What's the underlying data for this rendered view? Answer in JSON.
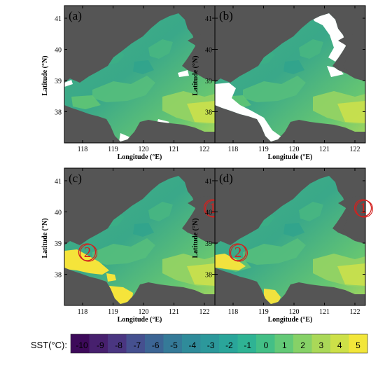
{
  "panels": [
    {
      "label": "(a)",
      "circles": []
    },
    {
      "label": "(b)",
      "circles": []
    },
    {
      "label": "(c)",
      "circles": [
        {
          "label": "1"
        },
        {
          "label": "2"
        }
      ]
    },
    {
      "label": "(d)",
      "circles": [
        {
          "label": "1"
        },
        {
          "label": "2"
        }
      ]
    }
  ],
  "axes": {
    "xlabel": "Longitude (°E)",
    "ylabel": "Latitude (°N)",
    "xticks": [
      "118",
      "119",
      "120",
      "121",
      "122"
    ],
    "yticks": [
      "41",
      "40",
      "39",
      "38"
    ]
  },
  "colorbar": {
    "label": "SST(°C):",
    "ticks": [
      "-10",
      "-9",
      "-8",
      "-7",
      "-6",
      "-5",
      "-4",
      "-3",
      "-2",
      "-1",
      "0",
      "1",
      "2",
      "3",
      "4",
      "5"
    ],
    "colors": [
      "#3d0a5a",
      "#47206e",
      "#4a3681",
      "#45508f",
      "#3c6594",
      "#357a98",
      "#2f8b9a",
      "#2c989b",
      "#2aa59a",
      "#2fb394",
      "#43bf86",
      "#63c977",
      "#86d167",
      "#aad858",
      "#cde048",
      "#f2e63a"
    ]
  },
  "colors": {
    "land": "#555555",
    "missing": "#ffffff",
    "circle": "#d3201e"
  }
}
